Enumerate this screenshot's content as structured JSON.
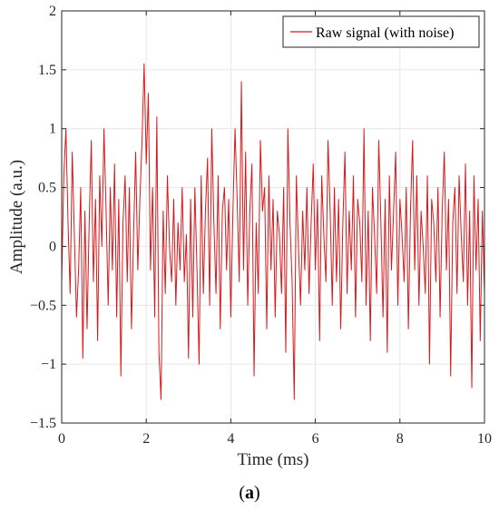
{
  "chart_data": {
    "type": "line",
    "xlabel": "Time (ms)",
    "ylabel": "Amplitude (a.u.)",
    "xlim": [
      0,
      10
    ],
    "ylim": [
      -1.5,
      2
    ],
    "xticks": [
      "0",
      "2",
      "4",
      "6",
      "8",
      "10"
    ],
    "yticks": [
      "−1.5",
      "−1",
      "−0.5",
      "0",
      "0.5",
      "1",
      "1.5",
      "2"
    ],
    "grid": true,
    "legend_position": "top-right",
    "line_color": "#d7191c",
    "series": [
      {
        "name": "Raw signal (with noise)",
        "x": [
          0.0,
          0.05,
          0.1,
          0.15,
          0.2,
          0.25,
          0.3,
          0.35,
          0.4,
          0.45,
          0.5,
          0.55,
          0.6,
          0.65,
          0.7,
          0.75,
          0.8,
          0.85,
          0.9,
          0.95,
          1.0,
          1.05,
          1.1,
          1.15,
          1.2,
          1.25,
          1.3,
          1.35,
          1.4,
          1.45,
          1.5,
          1.55,
          1.6,
          1.65,
          1.7,
          1.75,
          1.8,
          1.85,
          1.9,
          1.95,
          2.0,
          2.05,
          2.1,
          2.15,
          2.2,
          2.25,
          2.3,
          2.35,
          2.4,
          2.45,
          2.5,
          2.55,
          2.6,
          2.65,
          2.7,
          2.75,
          2.8,
          2.85,
          2.9,
          2.95,
          3.0,
          3.05,
          3.1,
          3.15,
          3.2,
          3.25,
          3.3,
          3.35,
          3.4,
          3.45,
          3.5,
          3.55,
          3.6,
          3.65,
          3.7,
          3.75,
          3.8,
          3.85,
          3.9,
          3.95,
          4.0,
          4.05,
          4.1,
          4.15,
          4.2,
          4.25,
          4.3,
          4.35,
          4.4,
          4.45,
          4.5,
          4.55,
          4.6,
          4.65,
          4.7,
          4.75,
          4.8,
          4.85,
          4.9,
          4.95,
          5.0,
          5.05,
          5.1,
          5.15,
          5.2,
          5.25,
          5.3,
          5.35,
          5.4,
          5.45,
          5.5,
          5.55,
          5.6,
          5.65,
          5.7,
          5.75,
          5.8,
          5.85,
          5.9,
          5.95,
          6.0,
          6.05,
          6.1,
          6.15,
          6.2,
          6.25,
          6.3,
          6.35,
          6.4,
          6.45,
          6.5,
          6.55,
          6.6,
          6.65,
          6.7,
          6.75,
          6.8,
          6.85,
          6.9,
          6.95,
          7.0,
          7.05,
          7.1,
          7.15,
          7.2,
          7.25,
          7.3,
          7.35,
          7.4,
          7.45,
          7.5,
          7.55,
          7.6,
          7.65,
          7.7,
          7.75,
          7.8,
          7.85,
          7.9,
          7.95,
          8.0,
          8.05,
          8.1,
          8.15,
          8.2,
          8.25,
          8.3,
          8.35,
          8.4,
          8.45,
          8.5,
          8.55,
          8.6,
          8.65,
          8.7,
          8.75,
          8.8,
          8.85,
          8.9,
          8.95,
          9.0,
          9.05,
          9.1,
          9.15,
          9.2,
          9.25,
          9.3,
          9.35,
          9.4,
          9.45,
          9.5,
          9.55,
          9.6,
          9.65,
          9.7,
          9.75,
          9.8,
          9.85,
          9.9,
          9.95,
          10.0
        ],
        "values": [
          -0.3,
          0.6,
          1.0,
          0.2,
          -0.4,
          0.8,
          0.1,
          -0.6,
          -0.2,
          0.5,
          -0.95,
          0.3,
          -0.7,
          0.2,
          0.9,
          -0.3,
          0.4,
          -0.8,
          0.6,
          0.0,
          1.0,
          0.3,
          -0.5,
          0.5,
          -0.2,
          0.7,
          -0.6,
          0.4,
          -1.1,
          0.2,
          0.6,
          -0.3,
          0.5,
          -0.7,
          0.1,
          0.8,
          -0.2,
          0.4,
          0.9,
          1.55,
          0.7,
          1.3,
          -0.2,
          0.5,
          -0.6,
          1.1,
          -0.9,
          -1.3,
          0.3,
          -0.4,
          0.6,
          0.0,
          -0.3,
          0.4,
          -0.5,
          0.2,
          -0.2,
          0.5,
          -0.3,
          0.1,
          -0.95,
          0.4,
          -0.6,
          0.5,
          -0.2,
          -1.0,
          0.6,
          -0.4,
          0.3,
          0.75,
          -0.5,
          1.0,
          0.2,
          -0.4,
          0.6,
          -0.7,
          0.3,
          0.5,
          -0.2,
          0.4,
          -0.6,
          0.3,
          1.0,
          0.4,
          -0.3,
          1.4,
          -0.2,
          0.8,
          -0.5,
          0.3,
          0.7,
          -1.1,
          0.2,
          -0.4,
          0.9,
          0.3,
          0.5,
          -0.7,
          0.6,
          -0.2,
          0.4,
          -0.6,
          0.3,
          0.1,
          -0.4,
          0.5,
          -0.9,
          1.0,
          0.2,
          -0.3,
          -1.3,
          0.6,
          0.0,
          -0.5,
          0.3,
          -0.2,
          0.5,
          -0.4,
          0.2,
          0.7,
          -0.2,
          0.4,
          -0.8,
          0.6,
          0.1,
          -0.3,
          0.9,
          0.3,
          -0.5,
          0.5,
          -0.3,
          0.4,
          -0.7,
          0.2,
          0.8,
          -0.4,
          0.3,
          -0.2,
          0.6,
          -0.6,
          0.4,
          0.2,
          -0.3,
          1.0,
          -0.5,
          0.3,
          -0.8,
          0.5,
          0.1,
          -0.4,
          0.9,
          0.2,
          -0.6,
          0.4,
          -0.9,
          0.6,
          -0.2,
          0.3,
          0.8,
          -0.5,
          0.4,
          0.1,
          -0.3,
          0.5,
          -0.7,
          0.3,
          0.9,
          -0.2,
          0.6,
          -0.5,
          0.3,
          0.0,
          -0.4,
          0.6,
          -1.0,
          0.4,
          0.2,
          -0.3,
          0.5,
          -0.6,
          0.3,
          0.8,
          -0.2,
          0.4,
          -1.1,
          0.2,
          0.5,
          -0.4,
          0.6,
          0.1,
          -0.3,
          0.7,
          -0.5,
          0.3,
          -1.2,
          0.6,
          -0.2,
          0.4,
          -0.8,
          0.3,
          -0.4
        ]
      }
    ]
  },
  "caption": {
    "text": "a"
  }
}
